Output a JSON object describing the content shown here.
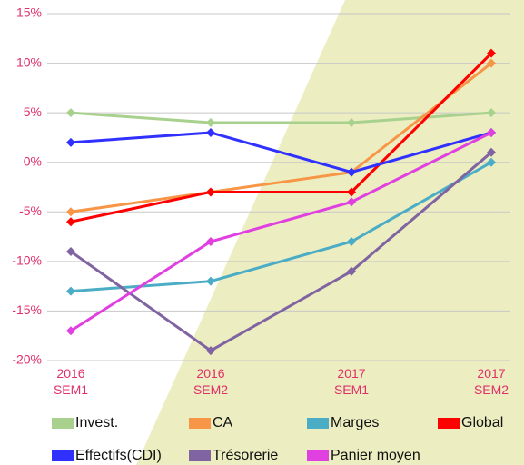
{
  "chart_data": {
    "type": "line",
    "categories": [
      "2016 SEM1",
      "2016 SEM2",
      "2017 SEM1",
      "2017 SEM2"
    ],
    "series": [
      {
        "name": "Invest.",
        "color": "#a9d18e",
        "values": [
          5,
          4,
          4,
          5
        ]
      },
      {
        "name": "CA",
        "color": "#f79646",
        "values": [
          -5,
          -3,
          -1,
          10
        ]
      },
      {
        "name": "Marges",
        "color": "#4bacc6",
        "values": [
          -13,
          -12,
          -8,
          0
        ]
      },
      {
        "name": "Global",
        "color": "#ff0000",
        "values": [
          -6,
          -3,
          -3,
          11
        ]
      },
      {
        "name": "Effectifs(CDI)",
        "color": "#3030ff",
        "values": [
          2,
          3,
          -1,
          3
        ]
      },
      {
        "name": "Trésorerie",
        "color": "#8064a2",
        "values": [
          -9,
          -19,
          -11,
          1
        ]
      },
      {
        "name": "Panier moyen",
        "color": "#e040e0",
        "values": [
          -17,
          -8,
          -4,
          3
        ]
      }
    ],
    "ylim": [
      -20,
      15
    ],
    "yticks": [
      {
        "value": -20,
        "label": "-20%"
      },
      {
        "value": -15,
        "label": "-15%"
      },
      {
        "value": -10,
        "label": "-10%"
      },
      {
        "value": -5,
        "label": "-5%"
      },
      {
        "value": 0,
        "label": "0%"
      },
      {
        "value": 5,
        "label": "5%"
      },
      {
        "value": 10,
        "label": "10%"
      },
      {
        "value": 15,
        "label": "15%"
      }
    ],
    "grid": true
  }
}
